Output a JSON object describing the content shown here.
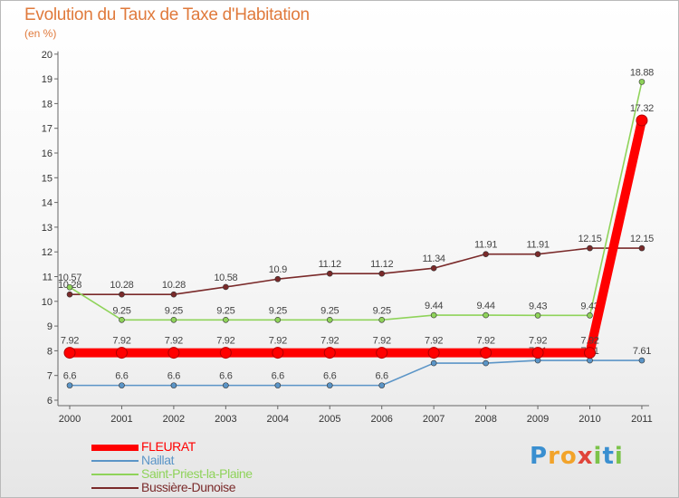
{
  "header": {
    "title": "Evolution du Taux de Taxe d'Habitation",
    "unit": "(en %)"
  },
  "chart_data": {
    "type": "line",
    "title": "Evolution du Taux de Taxe d'Habitation",
    "ylabel": "(en %)",
    "xlabel": "",
    "categories": [
      "2000",
      "2001",
      "2002",
      "2003",
      "2004",
      "2005",
      "2006",
      "2007",
      "2008",
      "2009",
      "2010",
      "2011"
    ],
    "ylim": [
      6,
      20
    ],
    "yticks": [
      "6",
      "7",
      "8",
      "9",
      "10",
      "11",
      "12",
      "13",
      "14",
      "15",
      "16",
      "17",
      "18",
      "19",
      "20"
    ],
    "grid": false,
    "legend_position": "bottom-left",
    "series": [
      {
        "name": "Bussière-Dunoise",
        "color": "#7a2a2a",
        "values": [
          10.28,
          10.28,
          10.28,
          10.58,
          10.9,
          11.12,
          11.12,
          11.34,
          11.91,
          11.91,
          12.15,
          12.15
        ],
        "labels": [
          "10.28",
          "10.28",
          "10.28",
          "10.58",
          "10.9",
          "11.12",
          "11.12",
          "11.34",
          "11.91",
          "11.91",
          "12.15",
          "12.15"
        ]
      },
      {
        "name": "Saint-Priest-la-Plaine",
        "color": "#8fd35a",
        "values": [
          10.57,
          9.25,
          9.25,
          9.25,
          9.25,
          9.25,
          9.25,
          9.44,
          9.44,
          9.43,
          9.43,
          18.88
        ],
        "labels": [
          "10.57",
          "9.25",
          "9.25",
          "9.25",
          "9.25",
          "9.25",
          "9.25",
          "9.44",
          "9.44",
          "9.43",
          "9.43",
          "18.88"
        ]
      },
      {
        "name": "Naillat",
        "color": "#5b95c7",
        "values": [
          6.6,
          6.6,
          6.6,
          6.6,
          6.6,
          6.6,
          6.6,
          7.5,
          7.5,
          7.61,
          7.61,
          7.61
        ],
        "labels": [
          "6.6",
          "6.6",
          "6.6",
          "6.6",
          "6.6",
          "6.6",
          "6.6",
          "7.5",
          "7.5",
          "7.61",
          "7.61",
          "7.61"
        ]
      },
      {
        "name": "FLEURAT",
        "color": "#ff0000",
        "values": [
          7.92,
          7.92,
          7.92,
          7.92,
          7.92,
          7.92,
          7.92,
          7.92,
          7.92,
          7.92,
          7.92,
          17.32
        ],
        "labels": [
          "7.92",
          "7.92",
          "7.92",
          "7.92",
          "7.92",
          "7.92",
          "7.92",
          "7.92",
          "7.92",
          "7.92",
          "7.92",
          "17.32"
        ]
      }
    ]
  },
  "legend": {
    "items": [
      {
        "label": "FLEURAT",
        "color": "#ff0000",
        "weight": "thick"
      },
      {
        "label": "Naillat",
        "color": "#5b95c7",
        "weight": "thin"
      },
      {
        "label": "Saint-Priest-la-Plaine",
        "color": "#8fd35a",
        "weight": "thin"
      },
      {
        "label": "Bussière-Dunoise",
        "color": "#7a2a2a",
        "weight": "thin"
      }
    ]
  },
  "logo": {
    "letters": [
      "P",
      "r",
      "o",
      "x",
      "i",
      "t",
      "i"
    ],
    "colors": [
      "#3a8fd0",
      "#f2a32a",
      "#f2a32a",
      "#e0443a",
      "#7cc34a",
      "#3a8fd0",
      "#7cc34a"
    ]
  }
}
